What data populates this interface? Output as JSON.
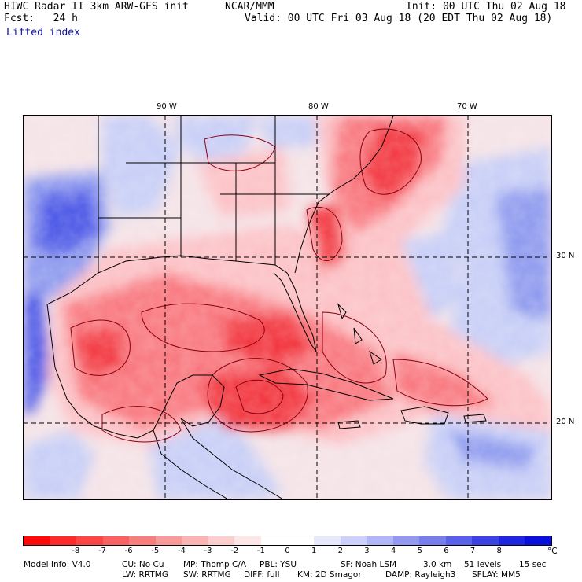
{
  "header": {
    "line1_left": "HIWC Radar II 3km ARW-GFS init",
    "line1_mid": "NCAR/MMM",
    "line1_right": "Init: 00 UTC Thu 02 Aug 18",
    "line2_left": "Fcst:   24 h",
    "line2_right": "Valid: 00 UTC Fri 03 Aug 18 (20 EDT Thu 02 Aug 18)",
    "field": "Lifted index"
  },
  "map": {
    "lon_labels": [
      "90 W",
      "80 W",
      "70 W"
    ],
    "lat_labels": [
      "30 N",
      "20 N"
    ],
    "colors": {
      "strong_red": "#f2333a",
      "mid_red": "#f8747c",
      "light_red": "#fcc0c4",
      "neutral": "#f4f0f6",
      "light_blue": "#c6cdf6",
      "mid_blue": "#8b98ee",
      "strong_blue": "#4a55e6",
      "contour": "#8a0010",
      "coast": "#000000"
    }
  },
  "colorbar": {
    "colors": [
      "#ff0a0a",
      "#fd2a2a",
      "#fb4646",
      "#f96262",
      "#f87e7e",
      "#f89a9a",
      "#fab4b4",
      "#fccfcf",
      "#fde6e6",
      "#ffffff",
      "#ffffff",
      "#e6e8fc",
      "#ccd0fa",
      "#b0b6f6",
      "#9399f1",
      "#777ded",
      "#5a61e9",
      "#3c43e4",
      "#1e26e0",
      "#0a10dc"
    ],
    "ticks": [
      "-8",
      "-7",
      "-6",
      "-5",
      "-4",
      "-3",
      "-2",
      "-1",
      "0",
      "1",
      "2",
      "3",
      "4",
      "5",
      "6",
      "7",
      "8"
    ],
    "unit": "°C"
  },
  "footer": {
    "line1": [
      "Model Info: V4.0",
      "CU: No Cu",
      "MP: Thomp C/A",
      "PBL: YSU",
      "SF: Noah LSM",
      "3.0 km",
      "51 levels",
      "15 sec"
    ],
    "line2": [
      "LW: RRTMG",
      "SW: RRTMG",
      "DIFF: full",
      "KM: 2D Smagor",
      "DAMP: Rayleigh3",
      "SFLAY: MM5"
    ]
  }
}
